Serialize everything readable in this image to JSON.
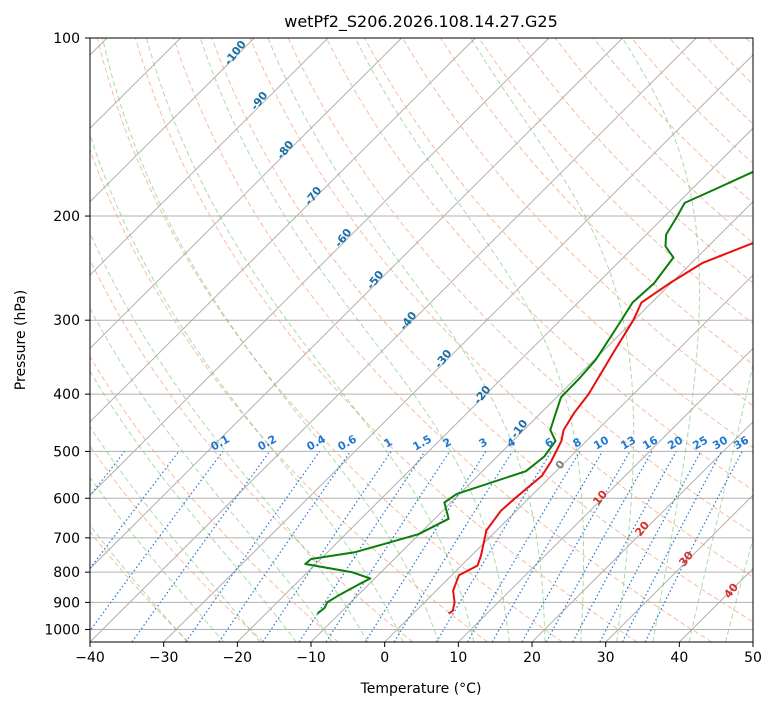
{
  "chart_data": {
    "type": "line",
    "title": "wetPf2_S206.2026.108.14.27.G25",
    "xlabel": "Temperature (°C)",
    "ylabel": "Pressure (hPa)",
    "xlim": [
      -40,
      50
    ],
    "ylim": [
      1050,
      100
    ],
    "y_scale": "log",
    "grid": true,
    "x_ticks": [
      -40,
      -30,
      -20,
      -10,
      0,
      10,
      20,
      30,
      40,
      50
    ],
    "y_ticks": [
      1000,
      900,
      800,
      700,
      600,
      500,
      400,
      300,
      200,
      100
    ],
    "series": [
      {
        "color": "#e8100f",
        "points": [
          [
            25.3,
            100
          ],
          [
            26.2,
            110
          ],
          [
            26.5,
            125
          ],
          [
            22.8,
            140
          ],
          [
            13.5,
            170
          ],
          [
            5.4,
            200
          ],
          [
            -3.8,
            220
          ],
          [
            -8.5,
            240
          ],
          [
            -10.2,
            260
          ],
          [
            -11.4,
            280
          ],
          [
            -10.1,
            300
          ],
          [
            -8.4,
            340
          ],
          [
            -6.1,
            400
          ],
          [
            -5.5,
            430
          ],
          [
            -4.6,
            460
          ],
          [
            -3.4,
            480
          ],
          [
            -2.0,
            520
          ],
          [
            -1.3,
            550
          ],
          [
            -1.9,
            600
          ],
          [
            -2.1,
            630
          ],
          [
            -1.4,
            680
          ],
          [
            1.3,
            750
          ],
          [
            2.2,
            780
          ],
          [
            1.0,
            810
          ],
          [
            2.3,
            860
          ],
          [
            4.1,
            900
          ],
          [
            5.0,
            930
          ],
          [
            4.8,
            940
          ]
        ]
      },
      {
        "color": "#0b7d0b",
        "points": [
          [
            -1.1,
            100
          ],
          [
            -6.0,
            120
          ],
          [
            -10.9,
            150
          ],
          [
            -13.2,
            165
          ],
          [
            -16.8,
            180
          ],
          [
            -19.1,
            190
          ],
          [
            -18.3,
            200
          ],
          [
            -17.3,
            215
          ],
          [
            -15.8,
            225
          ],
          [
            -13.2,
            235
          ],
          [
            -12.3,
            260
          ],
          [
            -12.6,
            280
          ],
          [
            -11.3,
            310
          ],
          [
            -9.8,
            350
          ],
          [
            -9.5,
            375
          ],
          [
            -9.4,
            405
          ],
          [
            -8.0,
            430
          ],
          [
            -6.4,
            460
          ],
          [
            -4.2,
            480
          ],
          [
            -3.6,
            510
          ],
          [
            -4.1,
            540
          ],
          [
            -10.4,
            590
          ],
          [
            -10.9,
            610
          ],
          [
            -8.1,
            650
          ],
          [
            -10.1,
            690
          ],
          [
            -16.2,
            740
          ],
          [
            -21.3,
            760
          ],
          [
            -21.4,
            775
          ],
          [
            -14.0,
            800
          ],
          [
            -10.6,
            820
          ],
          [
            -11.4,
            840
          ],
          [
            -12.6,
            875
          ],
          [
            -13.2,
            900
          ],
          [
            -12.8,
            920
          ],
          [
            -13.0,
            940
          ]
        ]
      }
    ],
    "dry_adiabat_labels": [
      "-100",
      "-90",
      "-80",
      "-70",
      "-60",
      "-50",
      "-40",
      "-30",
      "-20",
      "-10"
    ],
    "mixing_ratio_labels": [
      "0.1",
      "0.2",
      "0.4",
      "0.6",
      "1",
      "1.5",
      "2",
      "3",
      "4",
      "6",
      "8",
      "10",
      "13",
      "16",
      "20",
      "25",
      "30",
      "36"
    ],
    "moist_adiabat_labels": [
      "0",
      "10",
      "20",
      "30",
      "40"
    ],
    "colors": {
      "temperature": "#e8100f",
      "dewpoint": "#0b7d0b",
      "dry_adiabat": "#f4a582",
      "moist_adiabat": "#66bd63",
      "mixing_ratio": "#1f78d1",
      "dry_label": "#1c6ea4",
      "moist_label": "#d73027",
      "zero_label": "#808080",
      "grid": "#b0b0b0"
    }
  }
}
